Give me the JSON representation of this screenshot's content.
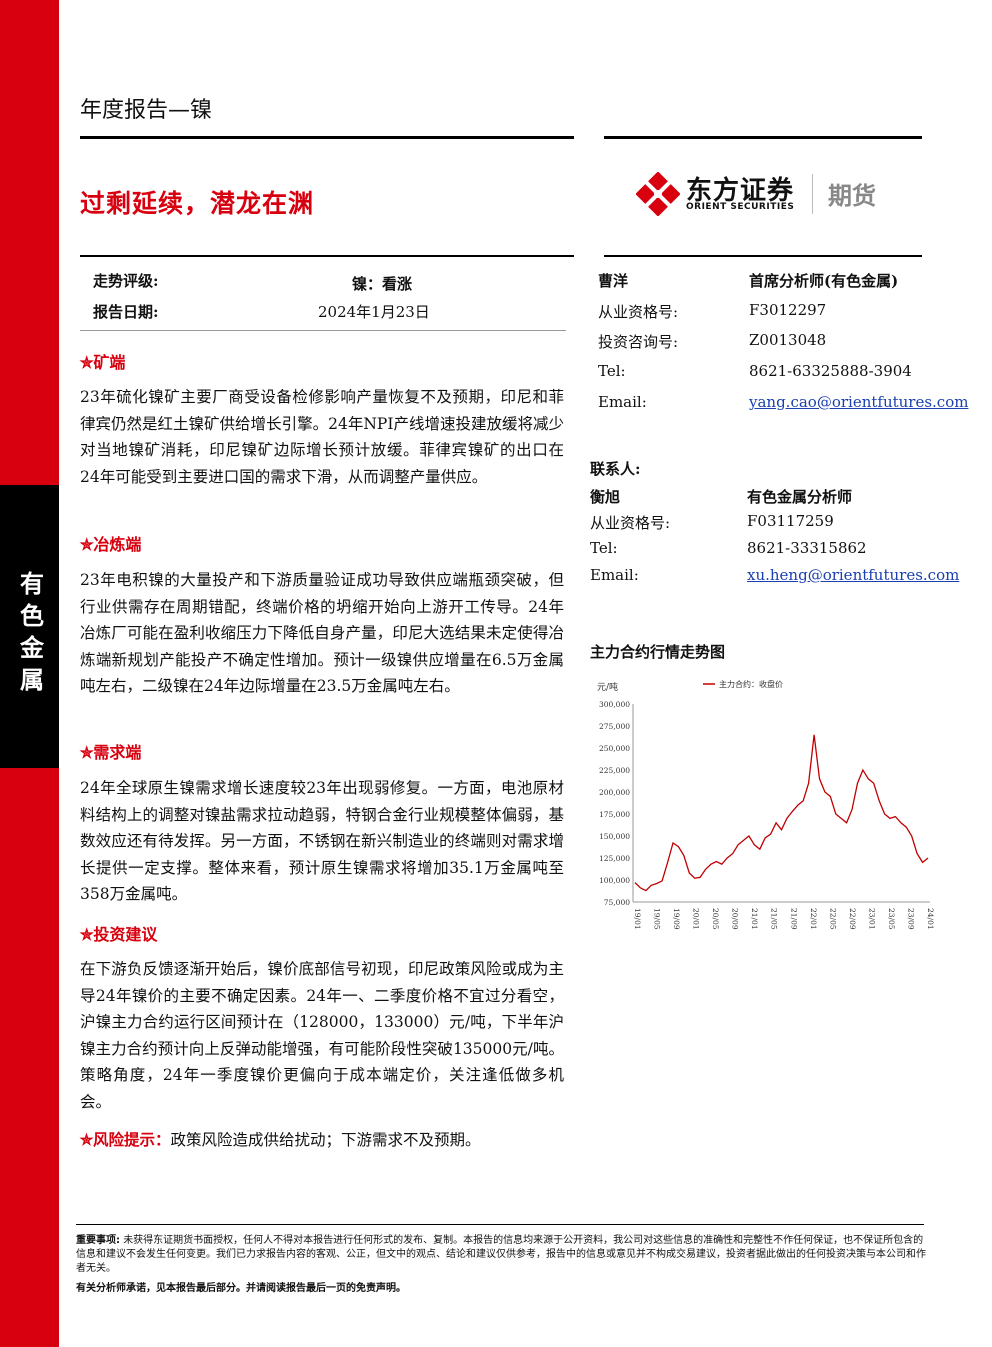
{
  "header": {
    "report_type": "年度报告—镍",
    "headline": "过剩延续，潜龙在渊"
  },
  "logo": {
    "name_cn": "东方证券",
    "name_en": "ORIENT SECURITIES",
    "division": "期货"
  },
  "sidebar": {
    "label": "有色金属"
  },
  "rating": {
    "trend_label": "走势评级:",
    "trend_value": "镍：看涨",
    "date_label": "报告日期:",
    "date_value": "2024年1月23日"
  },
  "sections": [
    {
      "title": "矿端",
      "icon": "star-icon",
      "body": "23年硫化镍矿主要厂商受设备检修影响产量恢复不及预期，印尼和菲律宾仍然是红土镍矿供给增长引擎。24年NPI产线增速投建放缓将减少对当地镍矿消耗，印尼镍矿边际增长预计放缓。菲律宾镍矿的出口在24年可能受到主要进口国的需求下滑，从而调整产量供应。"
    },
    {
      "title": "冶炼端",
      "icon": "star-icon",
      "body": "23年电积镍的大量投产和下游质量验证成功导致供应端瓶颈突破，但行业供需存在周期错配，终端价格的坍缩开始向上游开工传导。24年冶炼厂可能在盈利收缩压力下降低自身产量，印尼大选结果未定使得冶炼端新规划产能投产不确定性增加。预计一级镍供应增量在6.5万金属吨左右，二级镍在24年边际增量在23.5万金属吨左右。"
    },
    {
      "title": "需求端",
      "icon": "star-icon",
      "body": "24年全球原生镍需求增长速度较23年出现弱修复。一方面，电池原材料结构上的调整对镍盐需求拉动趋弱，特钢合金行业规模整体偏弱，基数效应还有待发挥。另一方面，不锈钢在新兴制造业的终端则对需求增长提供一定支撑。整体来看，预计原生镍需求将增加35.1万金属吨至358万金属吨。"
    },
    {
      "title": "投资建议",
      "icon": "star-icon",
      "body": "在下游负反馈逐渐开始后，镍价底部信号初现，印尼政策风险或成为主导24年镍价的主要不确定因素。24年一、二季度价格不宜过分看空，沪镍主力合约运行区间预计在（128000，133000）元/吨，下半年沪镍主力合约预计向上反弹动能增强，有可能阶段性突破135000元/吨。策略角度，24年一季度镍价更偏向于成本端定价，关注逢低做多机会。"
    }
  ],
  "risk": {
    "title": "风险提示：",
    "body": "政策风险造成供给扰动；下游需求不及预期。"
  },
  "analyst": {
    "name": "曹洋",
    "title": "首席分析师(有色金属)",
    "rows": [
      {
        "label": "从业资格号:",
        "value": "F3012297"
      },
      {
        "label": "投资咨询号:",
        "value": "Z0013048"
      },
      {
        "label": "Tel:",
        "value": "8621-63325888-3904"
      },
      {
        "label": "Email:",
        "value": "yang.cao@orientfutures.com"
      }
    ]
  },
  "contact": {
    "heading": "联系人:",
    "name": "衡旭",
    "title": "有色金属分析师",
    "rows": [
      {
        "label": "从业资格号:",
        "value": "F03117259"
      },
      {
        "label": "Tel:",
        "value": "8621-33315862"
      },
      {
        "label": "Email:",
        "value": "xu.heng@orientfutures.com"
      }
    ]
  },
  "chart_title": "主力合约行情走势图",
  "chart_data": {
    "type": "line",
    "title": "主力合约行情走势图",
    "ylabel": "元/吨",
    "ylim": [
      75000,
      300000
    ],
    "yticks": [
      "75,000",
      "100,000",
      "125,000",
      "150,000",
      "175,000",
      "200,000",
      "225,000",
      "250,000",
      "275,000",
      "300,000"
    ],
    "xticks": [
      "19/01",
      "19/05",
      "19/09",
      "20/01",
      "20/05",
      "20/09",
      "21/01",
      "21/05",
      "21/09",
      "22/01",
      "22/05",
      "22/09",
      "23/01",
      "23/05",
      "23/09",
      "24/01"
    ],
    "legend": "top-center",
    "color": "#c00000",
    "series": [
      {
        "name": "主力合约：收盘价",
        "values": [
          97000,
          91000,
          88000,
          94000,
          96000,
          99000,
          120000,
          142000,
          138000,
          128000,
          108000,
          102000,
          103000,
          112000,
          118000,
          121000,
          118000,
          125000,
          130000,
          140000,
          145000,
          150000,
          140000,
          135000,
          148000,
          152000,
          165000,
          157000,
          170000,
          178000,
          185000,
          190000,
          210000,
          265000,
          215000,
          200000,
          195000,
          175000,
          170000,
          165000,
          180000,
          210000,
          225000,
          215000,
          210000,
          190000,
          175000,
          170000,
          172000,
          165000,
          160000,
          150000,
          130000,
          120000,
          125000
        ]
      }
    ]
  },
  "footer": {
    "important_label": "重要事项:",
    "important_text": "未获得东证期货书面授权，任何人不得对本报告进行任何形式的发布、复制。本报告的信息均来源于公开资料，我公司对这些信息的准确性和完整性不作任何保证，也不保证所包含的信息和建议不会发生任何变更。我们已力求报告内容的客观、公正，但文中的观点、结论和建议仅供参考，报告中的信息或意见并不构成交易建议，投资者据此做出的任何投资决策与本公司和作者无关。",
    "note": "有关分析师承诺，见本报告最后部分。并请阅读报告最后一页的免责声明。"
  }
}
